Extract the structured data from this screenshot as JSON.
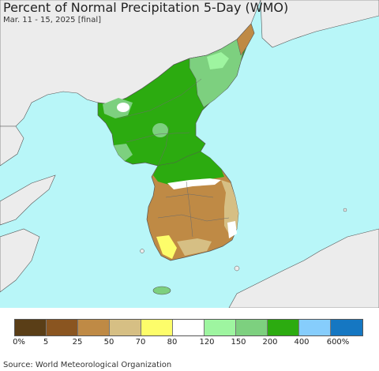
{
  "map": {
    "title": "Percent of Normal Precipitation 5-Day (WMO)",
    "subtitle": "Mar. 11 - 15, 2025 [final]",
    "colors": {
      "sea": "#b8f6f8",
      "land_outside": "#ececec",
      "border": "#555555"
    }
  },
  "legend": {
    "colors": [
      "#5a3e17",
      "#8a5520",
      "#bf8a45",
      "#d6bf84",
      "#fdfd6a",
      "#ffffff",
      "#9ef5a0",
      "#7dd07f",
      "#2cab10",
      "#86cdfc",
      "#1577c2"
    ],
    "labels": [
      "0%",
      "5",
      "25",
      "50",
      "70",
      "80",
      "120",
      "150",
      "200",
      "400",
      "600%"
    ]
  },
  "source": "Source: World Meteorological Organization"
}
